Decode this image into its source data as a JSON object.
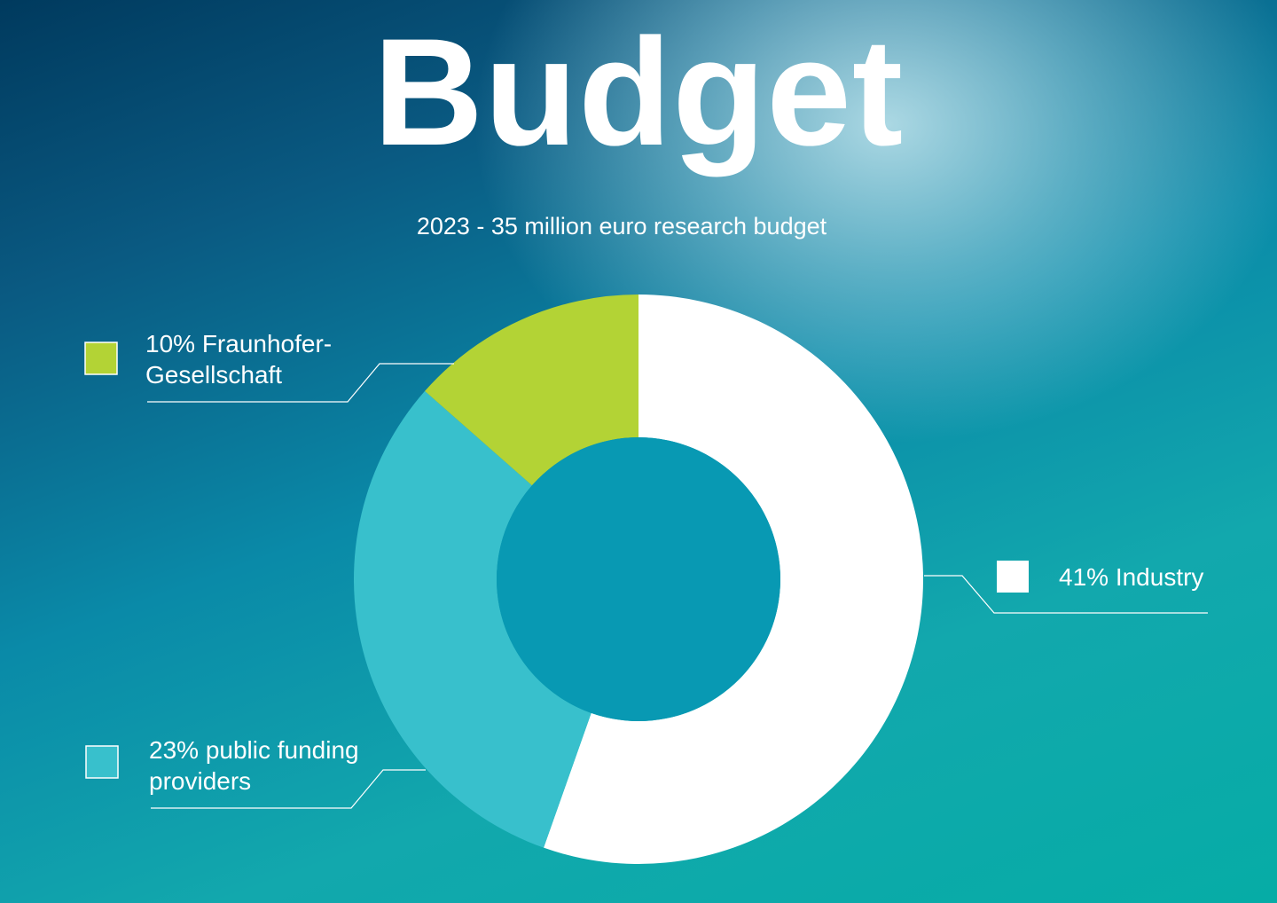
{
  "chart_data": {
    "type": "pie",
    "title": "Budget",
    "subtitle": "2023 - 35 million euro research budget",
    "slices": [
      {
        "label": "10% Fraunhofer-\nGesellschaft",
        "value": 10,
        "color": "#b3d335"
      },
      {
        "label": "23% public funding\nproviders",
        "value": 23,
        "color": "#38c0cc"
      },
      {
        "label": "41% Industry",
        "value": 41,
        "color": "#ffffff"
      }
    ],
    "hole_color": "#0899b3"
  }
}
